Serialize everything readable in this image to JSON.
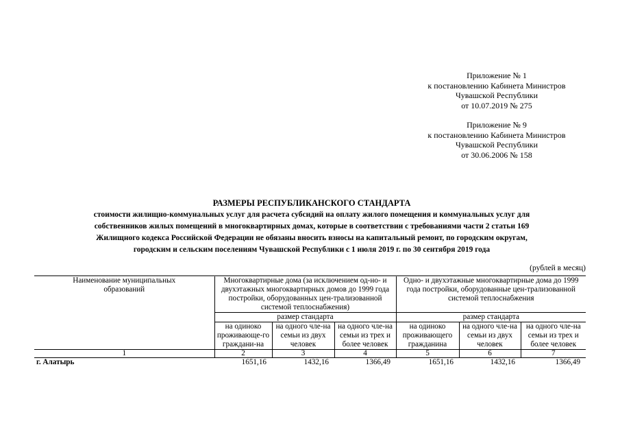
{
  "appendices": [
    {
      "lines": [
        "Приложение № 1",
        "к постановлению Кабинета Министров",
        "Чувашской Республики",
        "от 10.07.2019   № 275"
      ]
    },
    {
      "lines": [
        "Приложение № 9",
        "к постановлению Кабинета Министров",
        "Чувашской Республики",
        "от 30.06.2006   № 158"
      ]
    }
  ],
  "title": "РАЗМЕРЫ РЕСПУБЛИКАНСКОГО СТАНДАРТА",
  "subtitle_lines": [
    "стоимости жилищно-коммунальных услуг для расчета субсидий на оплату жилого помещения и коммунальных услуг для",
    "собственников жилых помещений в многоквартирных домах, которые в соответствии с требованиями части 2 статьи 169",
    "Жилищного кодекса Российской Федерации не обязаны вносить взносы на капитальный ремонт, по городским округам,",
    "городским и сельским поселениям Чувашской Республики  с 1 июля 2019 г. по 30 сентября 2019 года"
  ],
  "unit": "(рублей в месяц)",
  "table": {
    "col1_header": "Наименование муниципальных образований",
    "group1": "Многоквартирные дома (за исключением од-но- и двухэтажных многоквартирных домов до 1999 года постройки, оборудованных цен-трализованной системой теплоснабжения)",
    "group2": "Одно- и двухэтажные многоквартирные дома до 1999 года постройки, оборудованные цен-трализованной системой теплоснабжения",
    "subgroup": "размер стандарта",
    "subheaders": [
      "на одиноко проживающе-го граждани-на",
      "на одного чле-на семьи из двух человек",
      "на одного чле-на семьи из трех и более человек",
      "на одиноко проживающего гражданина",
      "на одного чле-на семьи из двух человек",
      "на одного чле-на семьи из трех и более человек"
    ],
    "col_numbers": [
      "1",
      "2",
      "3",
      "4",
      "5",
      "6",
      "7"
    ],
    "rows": [
      {
        "name": "г. Алатырь",
        "values": [
          "1651,16",
          "1432,16",
          "1366,49",
          "1651,16",
          "1432,16",
          "1366,49"
        ]
      }
    ]
  }
}
